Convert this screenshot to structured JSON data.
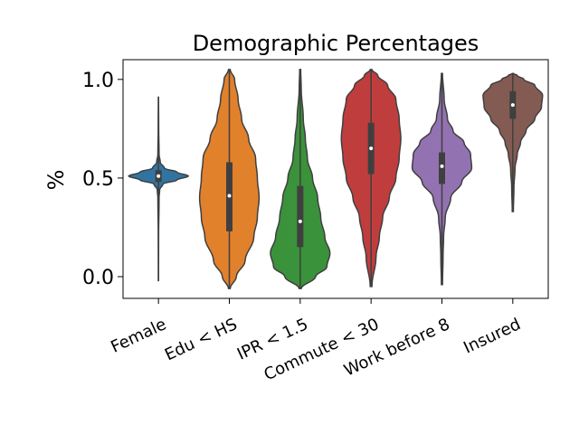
{
  "chart_data": {
    "type": "violin",
    "title": "Demographic Percentages",
    "xlabel": "",
    "ylabel": "%",
    "ylim": [
      -0.11,
      1.1
    ],
    "yticks": [
      0.0,
      0.5,
      1.0
    ],
    "ytick_labels": [
      "0.0",
      "0.5",
      "1.0"
    ],
    "categories": [
      "Female",
      "Edu < HS",
      "IPR < 1.5",
      "Commute < 30",
      "Work before 8",
      "Insured"
    ],
    "colors": [
      "#3274a1",
      "#e1812c",
      "#3a923a",
      "#c03d3e",
      "#9372b2",
      "#845b53"
    ],
    "series": [
      {
        "min": -0.02,
        "max": 0.91,
        "q1": 0.48,
        "median": 0.51,
        "q3": 0.54,
        "density": [
          [
            -0.02,
            0.003
          ],
          [
            0.2,
            0.005
          ],
          [
            0.4,
            0.02
          ],
          [
            0.44,
            0.04
          ],
          [
            0.47,
            0.15
          ],
          [
            0.49,
            0.62
          ],
          [
            0.51,
            1.0
          ],
          [
            0.53,
            0.62
          ],
          [
            0.55,
            0.2
          ],
          [
            0.58,
            0.06
          ],
          [
            0.62,
            0.02
          ],
          [
            0.75,
            0.008
          ],
          [
            0.91,
            0.003
          ]
        ]
      },
      {
        "min": -0.06,
        "max": 1.05,
        "q1": 0.23,
        "median": 0.41,
        "q3": 0.58,
        "density": [
          [
            -0.06,
            0.005
          ],
          [
            0.0,
            0.04
          ],
          [
            0.08,
            0.09
          ],
          [
            0.2,
            0.14
          ],
          [
            0.3,
            0.16
          ],
          [
            0.4,
            0.17
          ],
          [
            0.5,
            0.16
          ],
          [
            0.6,
            0.15
          ],
          [
            0.7,
            0.11
          ],
          [
            0.8,
            0.07
          ],
          [
            0.9,
            0.05
          ],
          [
            1.0,
            0.03
          ],
          [
            1.05,
            0.005
          ]
        ]
      },
      {
        "min": -0.06,
        "max": 1.05,
        "q1": 0.15,
        "median": 0.28,
        "q3": 0.46,
        "density": [
          [
            -0.06,
            0.01
          ],
          [
            0.0,
            0.15
          ],
          [
            0.05,
            0.26
          ],
          [
            0.12,
            0.29
          ],
          [
            0.2,
            0.24
          ],
          [
            0.3,
            0.2
          ],
          [
            0.4,
            0.17
          ],
          [
            0.5,
            0.12
          ],
          [
            0.6,
            0.07
          ],
          [
            0.7,
            0.05
          ],
          [
            0.8,
            0.03
          ],
          [
            0.95,
            0.01
          ],
          [
            1.05,
            0.005
          ]
        ]
      },
      {
        "min": -0.05,
        "max": 1.05,
        "q1": 0.52,
        "median": 0.65,
        "q3": 0.78,
        "density": [
          [
            -0.05,
            0.005
          ],
          [
            0.1,
            0.03
          ],
          [
            0.2,
            0.05
          ],
          [
            0.3,
            0.07
          ],
          [
            0.4,
            0.11
          ],
          [
            0.5,
            0.15
          ],
          [
            0.6,
            0.17
          ],
          [
            0.7,
            0.18
          ],
          [
            0.8,
            0.17
          ],
          [
            0.9,
            0.15
          ],
          [
            0.97,
            0.1
          ],
          [
            1.02,
            0.04
          ],
          [
            1.05,
            0.005
          ]
        ]
      },
      {
        "min": -0.04,
        "max": 1.03,
        "q1": 0.47,
        "median": 0.56,
        "q3": 0.63,
        "density": [
          [
            -0.04,
            0.005
          ],
          [
            0.1,
            0.01
          ],
          [
            0.2,
            0.015
          ],
          [
            0.3,
            0.03
          ],
          [
            0.4,
            0.08
          ],
          [
            0.48,
            0.18
          ],
          [
            0.55,
            0.27
          ],
          [
            0.62,
            0.26
          ],
          [
            0.68,
            0.2
          ],
          [
            0.74,
            0.1
          ],
          [
            0.8,
            0.05
          ],
          [
            0.9,
            0.02
          ],
          [
            1.03,
            0.005
          ]
        ]
      },
      {
        "min": 0.33,
        "max": 1.03,
        "q1": 0.8,
        "median": 0.87,
        "q3": 0.94,
        "density": [
          [
            0.33,
            0.005
          ],
          [
            0.45,
            0.01
          ],
          [
            0.55,
            0.02
          ],
          [
            0.62,
            0.04
          ],
          [
            0.68,
            0.07
          ],
          [
            0.74,
            0.12
          ],
          [
            0.8,
            0.2
          ],
          [
            0.86,
            0.26
          ],
          [
            0.92,
            0.27
          ],
          [
            0.97,
            0.2
          ],
          [
            1.0,
            0.1
          ],
          [
            1.02,
            0.04
          ],
          [
            1.03,
            0.005
          ]
        ]
      }
    ],
    "grid": false,
    "legend": "none"
  }
}
